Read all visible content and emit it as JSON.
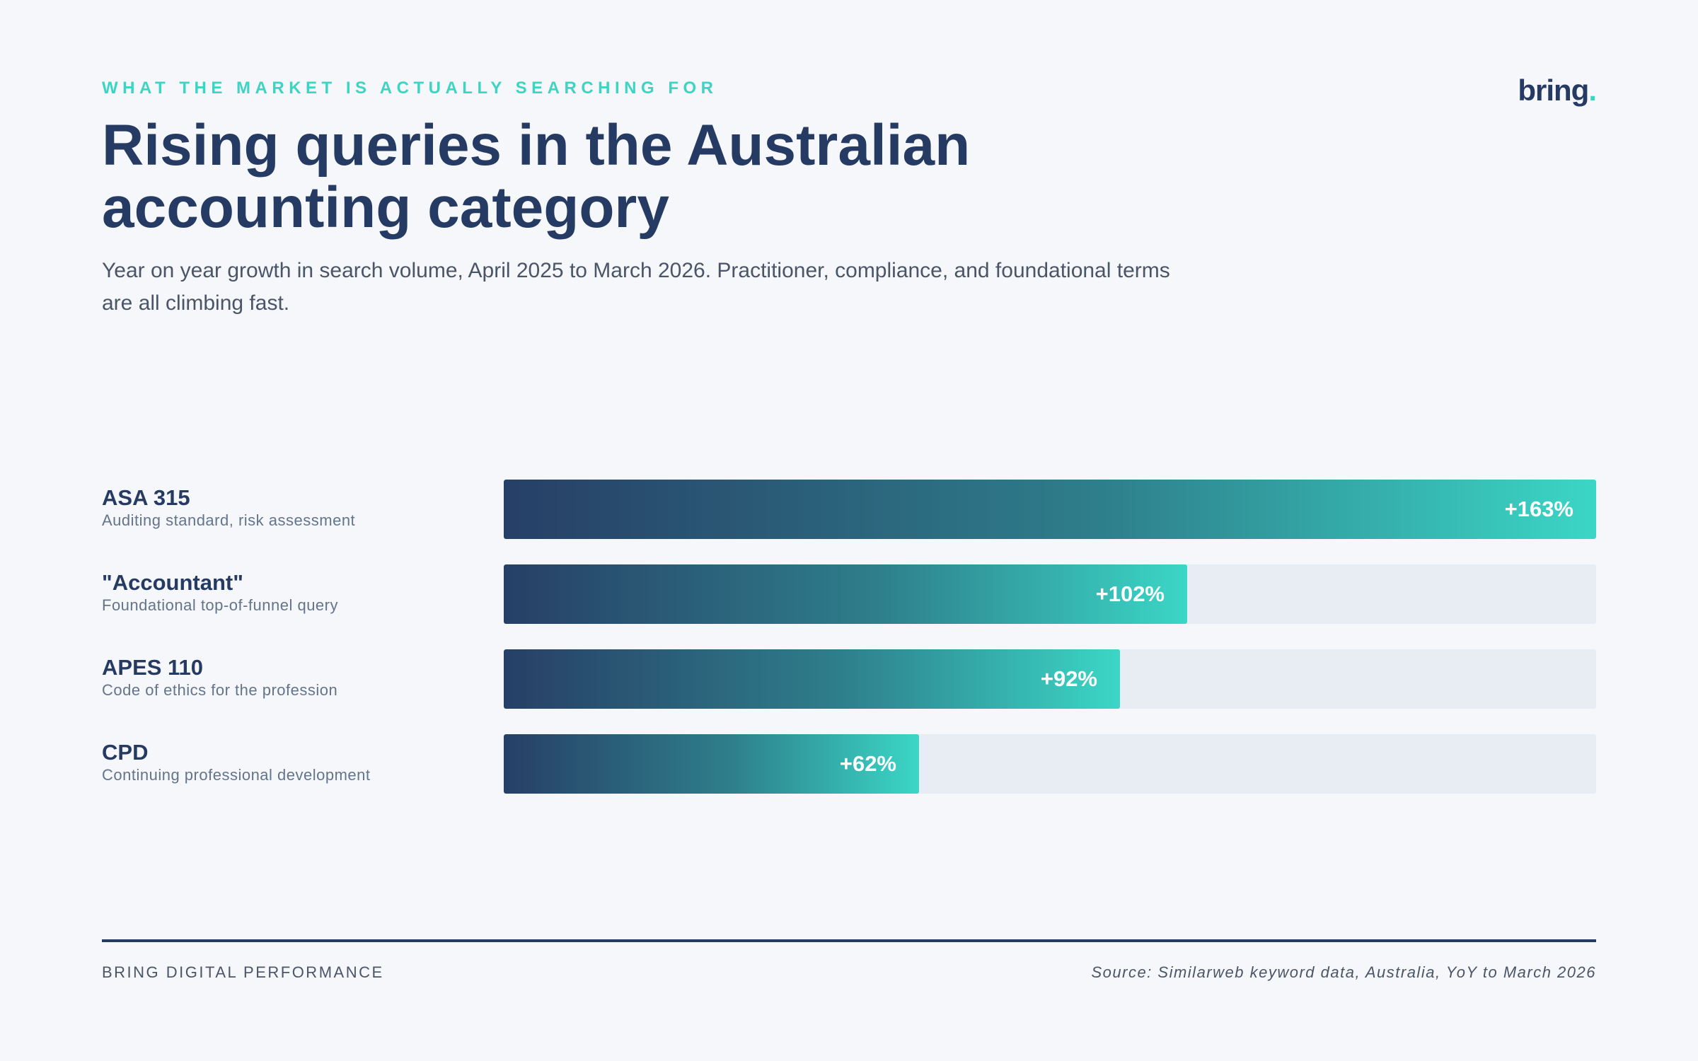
{
  "header": {
    "eyebrow": "WHAT THE MARKET IS ACTUALLY SEARCHING FOR",
    "logo_text": "bring",
    "logo_dot": ".",
    "title": "Rising queries in the Australian accounting category",
    "subtitle": "Year on year growth in search volume, April 2025 to March 2026. Practitioner, compliance, and foundational terms are all climbing fast."
  },
  "chart_data": {
    "type": "bar",
    "orientation": "horizontal",
    "categories": [
      "ASA 315",
      "\"Accountant\"",
      "APES 110",
      "CPD"
    ],
    "descriptions": [
      "Auditing standard, risk assessment",
      "Foundational top-of-funnel query",
      "Code of ethics for the profession",
      "Continuing professional development"
    ],
    "values": [
      163,
      102,
      92,
      62
    ],
    "value_labels": [
      "+163%",
      "+102%",
      "+92%",
      "+62%"
    ],
    "xlim": [
      0,
      163
    ],
    "title": "",
    "xlabel": "",
    "ylabel": "",
    "grid": false
  },
  "footer": {
    "left": "BRING DIGITAL PERFORMANCE",
    "source": "Source: Similarweb keyword data, Australia, YoY to March 2026"
  },
  "colors": {
    "accent": "#3dd4c3",
    "navy": "#263b63",
    "track": "#e8edf3",
    "background": "#f5f7fa"
  }
}
